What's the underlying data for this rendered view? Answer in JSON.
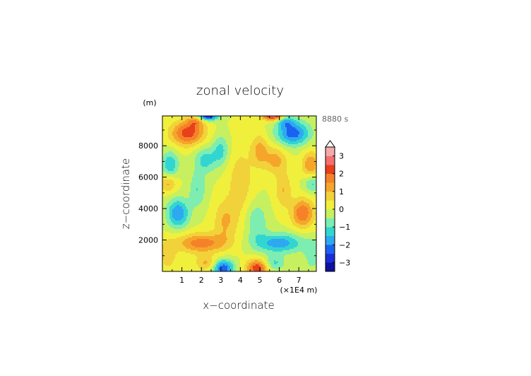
{
  "chart_data": {
    "type": "heatmap",
    "title": "zonal velocity",
    "xlabel": "x−coordinate",
    "ylabel": "z−coordinate",
    "x_unit": "(×1E4 m)",
    "y_unit": "(m)",
    "time_label": "8880 s",
    "xlim": [
      0,
      7.9
    ],
    "ylim": [
      0,
      9900
    ],
    "x_ticks": [
      "1",
      "2",
      "3",
      "4",
      "5",
      "6",
      "7"
    ],
    "x_tick_values": [
      1,
      2,
      3,
      4,
      5,
      6,
      7
    ],
    "y_ticks": [
      "2000",
      "4000",
      "6000",
      "8000"
    ],
    "y_tick_values": [
      2000,
      4000,
      6000,
      8000
    ],
    "colorbar": {
      "range": [
        -3.5,
        3.5
      ],
      "step": 0.5,
      "extend": "max",
      "tick_labels": [
        "3",
        "2",
        "1",
        "0",
        "−1",
        "−2",
        "−3"
      ],
      "tick_values": [
        3,
        2,
        1,
        0,
        -1,
        -2,
        -3
      ],
      "colors": [
        "#1010a0",
        "#1a2ed6",
        "#1a62f0",
        "#2ea8f0",
        "#32d6d0",
        "#7dedb0",
        "#c6f060",
        "#f0f03c",
        "#f2d23a",
        "#f5a62a",
        "#f58228",
        "#e8401a",
        "#f47070",
        "#f4aaaa"
      ]
    },
    "field_features": [
      {
        "x": 4.0,
        "z": 5500,
        "amp": 0.8,
        "sx": 0.5,
        "sz": 1800
      },
      {
        "x": 2.0,
        "z": 1800,
        "amp": 1.8,
        "sx": 0.9,
        "sz": 450
      },
      {
        "x": 6.0,
        "z": 1800,
        "amp": -1.8,
        "sx": 0.9,
        "sz": 450
      },
      {
        "x": 0.8,
        "z": 3700,
        "amp": -2.0,
        "sx": 0.4,
        "sz": 650
      },
      {
        "x": 7.2,
        "z": 3700,
        "amp": 2.0,
        "sx": 0.4,
        "sz": 650
      },
      {
        "x": 1.8,
        "z": 5200,
        "amp": -1.0,
        "sx": 0.3,
        "sz": 800
      },
      {
        "x": 6.2,
        "z": 5200,
        "amp": 1.0,
        "sx": 0.3,
        "sz": 800
      },
      {
        "x": 3.2,
        "z": 3200,
        "amp": 1.0,
        "sx": 0.4,
        "sz": 900
      },
      {
        "x": 4.8,
        "z": 3200,
        "amp": -1.0,
        "sx": 0.4,
        "sz": 900
      },
      {
        "x": 3.1,
        "z": 200,
        "amp": -2.5,
        "sx": 0.4,
        "sz": 400
      },
      {
        "x": 4.9,
        "z": 200,
        "amp": 2.5,
        "sx": 0.4,
        "sz": 400
      },
      {
        "x": 2.3,
        "z": 500,
        "amp": 1.2,
        "sx": 0.4,
        "sz": 350
      },
      {
        "x": 5.7,
        "z": 500,
        "amp": -1.2,
        "sx": 0.4,
        "sz": 350
      },
      {
        "x": 1.3,
        "z": 8800,
        "amp": 2.3,
        "sx": 0.6,
        "sz": 550
      },
      {
        "x": 6.7,
        "z": 8800,
        "amp": -2.3,
        "sx": 0.6,
        "sz": 550
      },
      {
        "x": 2.2,
        "z": 7100,
        "amp": -1.2,
        "sx": 0.4,
        "sz": 600
      },
      {
        "x": 5.8,
        "z": 7100,
        "amp": 1.2,
        "sx": 0.4,
        "sz": 600
      },
      {
        "x": 3.0,
        "z": 7700,
        "amp": -1.2,
        "sx": 0.3,
        "sz": 700
      },
      {
        "x": 5.0,
        "z": 7700,
        "amp": 1.2,
        "sx": 0.3,
        "sz": 700
      },
      {
        "x": 0.4,
        "z": 6800,
        "amp": -1.5,
        "sx": 0.3,
        "sz": 600
      },
      {
        "x": 7.6,
        "z": 6800,
        "amp": 1.5,
        "sx": 0.3,
        "sz": 600
      },
      {
        "x": 0.3,
        "z": 5600,
        "amp": 1.2,
        "sx": 0.3,
        "sz": 400
      },
      {
        "x": 7.7,
        "z": 5600,
        "amp": -1.2,
        "sx": 0.3,
        "sz": 400
      },
      {
        "x": 2.3,
        "z": 9900,
        "amp": -3.0,
        "sx": 0.4,
        "sz": 200
      },
      {
        "x": 5.7,
        "z": 9900,
        "amp": 3.0,
        "sx": 0.4,
        "sz": 200
      },
      {
        "x": 1.7,
        "z": 9600,
        "amp": 1.3,
        "sx": 0.3,
        "sz": 300
      },
      {
        "x": 6.3,
        "z": 9600,
        "amp": -1.3,
        "sx": 0.3,
        "sz": 300
      },
      {
        "x": 0.3,
        "z": 1000,
        "amp": 0.8,
        "sx": 0.3,
        "sz": 700
      },
      {
        "x": 7.7,
        "z": 1000,
        "amp": -0.8,
        "sx": 0.3,
        "sz": 700
      }
    ]
  }
}
